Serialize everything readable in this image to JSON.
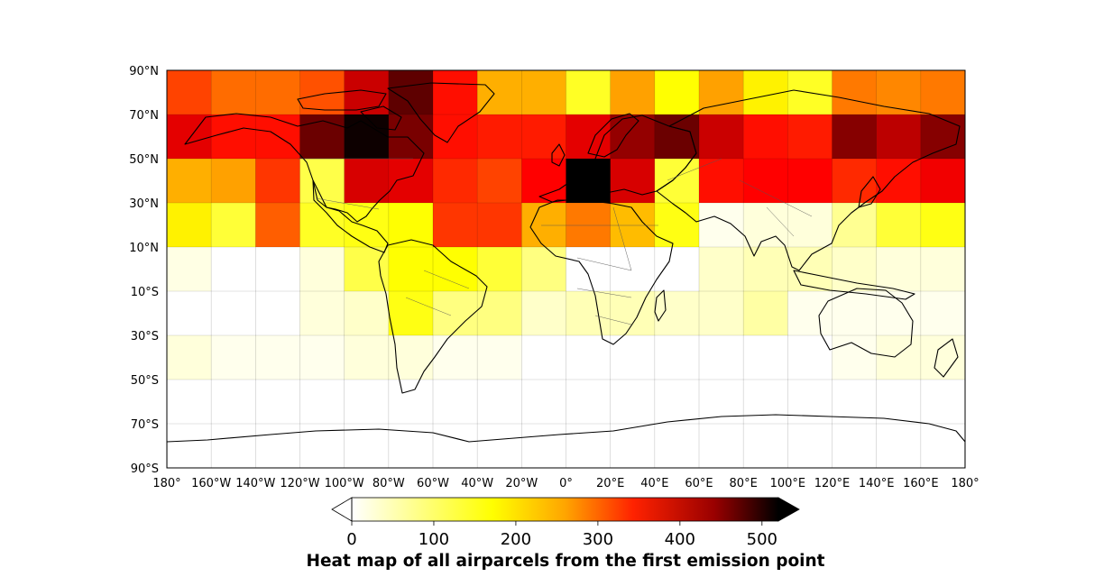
{
  "chart_data": {
    "type": "heatmap",
    "title": "Heat map of all airparcels from the first emission point",
    "projection": "PlateCarree",
    "grid_on": true,
    "lon_ticks": [
      "180°",
      "160°W",
      "140°W",
      "120°W",
      "100°W",
      "80°W",
      "60°W",
      "40°W",
      "20°W",
      "0°",
      "20°E",
      "40°E",
      "60°E",
      "80°E",
      "100°E",
      "120°E",
      "140°E",
      "160°E",
      "180°"
    ],
    "lat_ticks": [
      "90°N",
      "70°N",
      "50°N",
      "30°N",
      "10°N",
      "10°S",
      "30°S",
      "50°S",
      "70°S",
      "90°S"
    ],
    "lon_edges": [
      -180,
      -160,
      -140,
      -120,
      -100,
      -80,
      -60,
      -40,
      -20,
      0,
      20,
      40,
      60,
      80,
      100,
      120,
      140,
      160,
      180
    ],
    "lat_edges": [
      90,
      70,
      50,
      30,
      10,
      -10,
      -30,
      -50,
      -70,
      -90
    ],
    "cells": [
      [
        280,
        250,
        250,
        270,
        370,
        450,
        320,
        200,
        200,
        120,
        210,
        140,
        210,
        150,
        120,
        240,
        230,
        240
      ],
      [
        350,
        320,
        320,
        440,
        510,
        430,
        320,
        310,
        310,
        350,
        410,
        440,
        370,
        320,
        310,
        420,
        380,
        420
      ],
      [
        200,
        210,
        290,
        100,
        360,
        350,
        300,
        280,
        330,
        520,
        360,
        110,
        320,
        330,
        330,
        300,
        320,
        340
      ],
      [
        150,
        110,
        260,
        120,
        130,
        140,
        290,
        290,
        200,
        240,
        190,
        130,
        10,
        20,
        20,
        60,
        110,
        130
      ],
      [
        15,
        0,
        0,
        20,
        100,
        140,
        140,
        110,
        70,
        0,
        0,
        0,
        30,
        40,
        40,
        30,
        20,
        20
      ],
      [
        0,
        0,
        0,
        20,
        30,
        130,
        70,
        70,
        30,
        40,
        40,
        30,
        30,
        50,
        10,
        10,
        10,
        10
      ],
      [
        20,
        10,
        10,
        10,
        20,
        20,
        10,
        10,
        0,
        0,
        0,
        0,
        0,
        0,
        0,
        10,
        20,
        20
      ],
      [
        0,
        0,
        0,
        0,
        0,
        0,
        0,
        0,
        0,
        0,
        0,
        0,
        0,
        0,
        0,
        0,
        0,
        0
      ],
      [
        0,
        0,
        0,
        0,
        0,
        0,
        0,
        0,
        0,
        0,
        0,
        0,
        0,
        0,
        0,
        0,
        0,
        0
      ]
    ],
    "colorbar": {
      "colormap": "hot_r",
      "vmin": 0,
      "vmax": 520,
      "ticks": [
        "0",
        "100",
        "200",
        "300",
        "400",
        "500"
      ],
      "extend": "both"
    }
  }
}
